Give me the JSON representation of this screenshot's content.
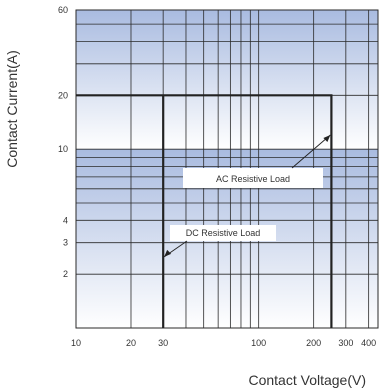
{
  "chart_data": {
    "type": "line",
    "title": "",
    "xlabel": "Contact Voltage(V)",
    "ylabel": "Contact Current(A)",
    "x_scale": "log",
    "y_scale": "log",
    "xlim": [
      10,
      450
    ],
    "ylim": [
      1,
      60
    ],
    "x_tick_labels": [
      "10",
      "20",
      "30",
      "100",
      "200",
      "300",
      "400"
    ],
    "x_ticks": [
      10,
      20,
      30,
      100,
      200,
      300,
      400
    ],
    "y_tick_labels": [
      "2",
      "3",
      "4",
      "10",
      "20",
      "60"
    ],
    "y_ticks": [
      2,
      3,
      4,
      10,
      20,
      60
    ],
    "grid": true,
    "series": [
      {
        "name": "AC Resistive Load",
        "x": [
          10,
          250,
          250
        ],
        "y": [
          20,
          20,
          1
        ]
      },
      {
        "name": "DC Resistive Load",
        "x": [
          30,
          30
        ],
        "y": [
          1,
          20
        ]
      }
    ],
    "annotations": [
      {
        "text": "AC Resistive Load",
        "points_to": {
          "x": 250,
          "y": 12
        }
      },
      {
        "text": "DC Resistive Load",
        "points_to": {
          "x": 30,
          "y": 2.5
        }
      }
    ],
    "colors": {
      "band": "#a9bbe0",
      "line": "#222222",
      "grid": "#2a2a2a"
    }
  }
}
